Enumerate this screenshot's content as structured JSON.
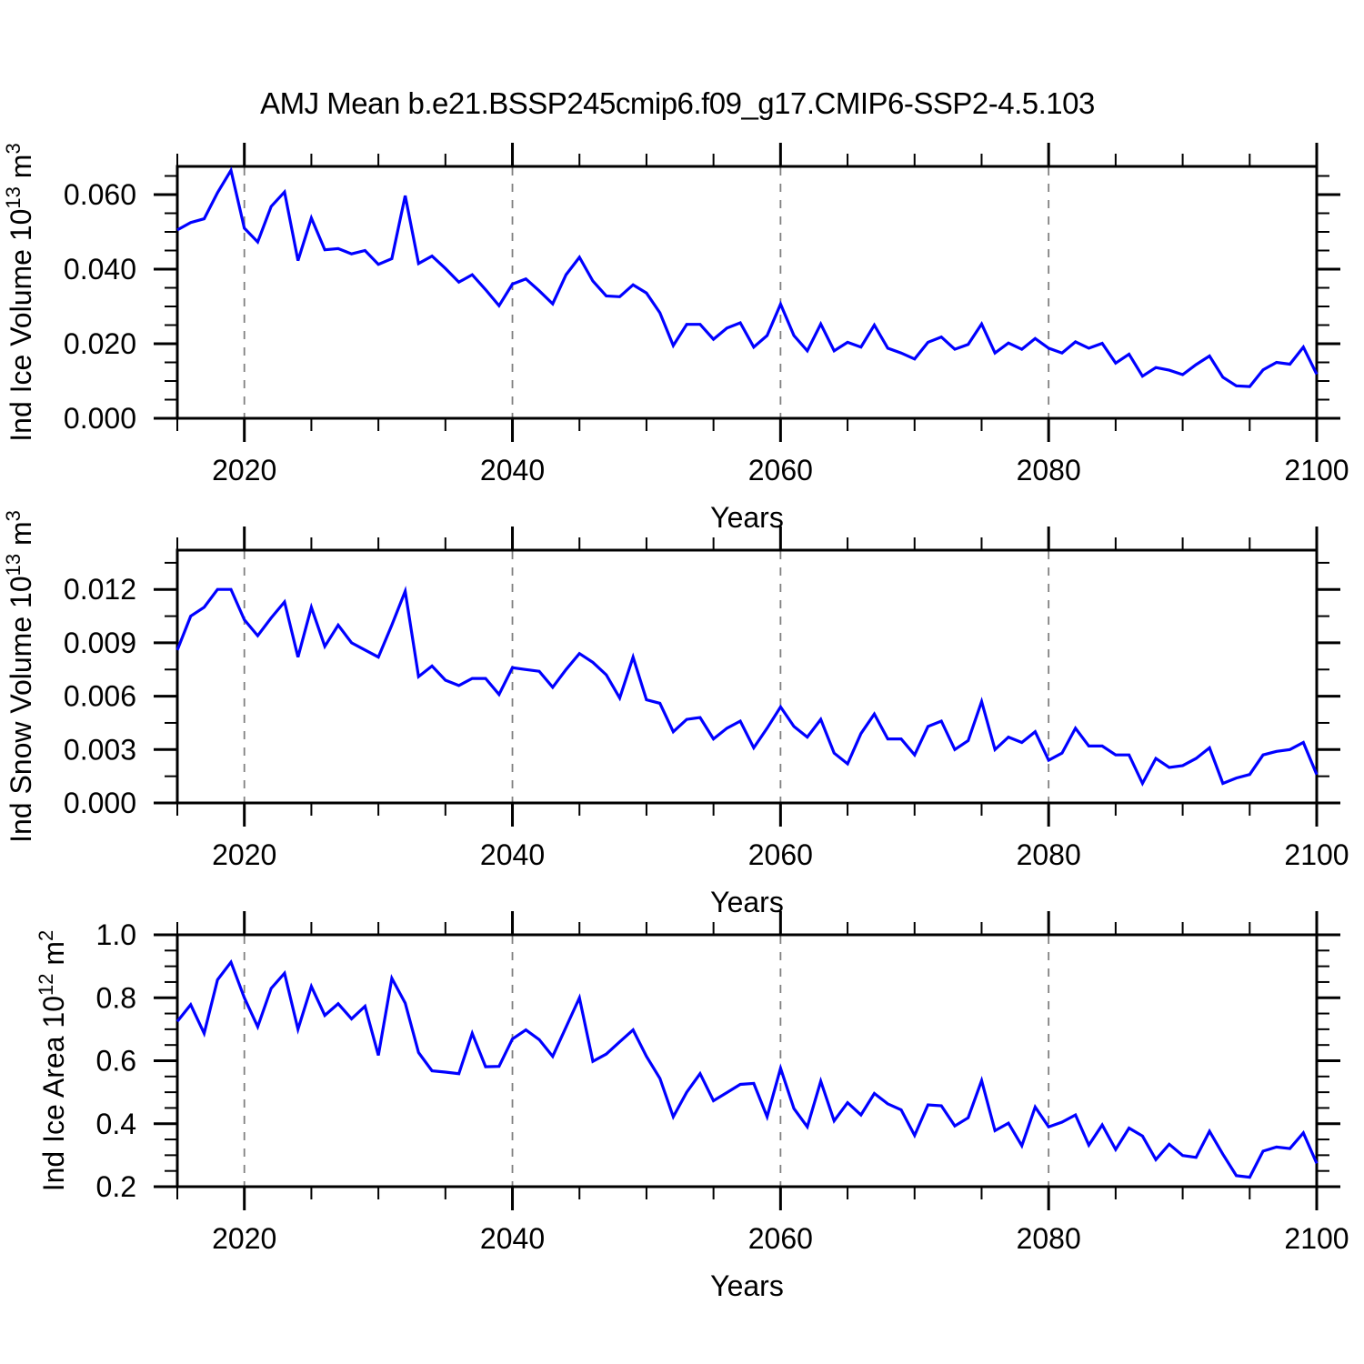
{
  "title": "AMJ Mean b.e21.BSSP245cmip6.f09_g17.CMIP6-SSP2-4.5.103",
  "colors": {
    "line": "#0000ff",
    "axis": "#000000",
    "grid": "#808080",
    "text": "#000000",
    "background": "#ffffff"
  },
  "x_axis": {
    "label": "Years",
    "range": [
      2015,
      2100
    ],
    "major_ticks": [
      2020,
      2040,
      2060,
      2080,
      2100
    ],
    "tick_labels": [
      "2020",
      "2040",
      "2060",
      "2080",
      "2100"
    ],
    "minor_step": 5,
    "grid_years": [
      2020,
      2040,
      2060,
      2080
    ]
  },
  "chart_data": [
    {
      "type": "line",
      "name": "ind-ice-volume",
      "ylabel_text": "Ind Ice Volume 10^13 m^3",
      "ylabel_parts": [
        {
          "text": "Ind Ice Volume 10"
        },
        {
          "text": "13",
          "sup": true
        },
        {
          "text": " m"
        },
        {
          "text": "3",
          "sup": true
        }
      ],
      "xlabel": "Years",
      "x_start": 2015,
      "ylim": [
        0,
        0.06756
      ],
      "yticks": [
        {
          "v": 0.0,
          "label": "0.000"
        },
        {
          "v": 0.02,
          "label": "0.020"
        },
        {
          "v": 0.04,
          "label": "0.040"
        },
        {
          "v": 0.06,
          "label": "0.060"
        }
      ],
      "yminor": [
        0.005,
        0.01,
        0.015,
        0.025,
        0.03,
        0.035,
        0.045,
        0.05,
        0.055,
        0.065
      ],
      "grid": "vertical-dashed",
      "legend": "none",
      "values": [
        0.0505,
        0.0525,
        0.0535,
        0.0605,
        0.0665,
        0.051,
        0.0473,
        0.0568,
        0.0607,
        0.0423,
        0.0537,
        0.0452,
        0.0455,
        0.0441,
        0.045,
        0.0413,
        0.0428,
        0.0597,
        0.0415,
        0.0435,
        0.0402,
        0.0365,
        0.0385,
        0.0345,
        0.0302,
        0.036,
        0.0374,
        0.0342,
        0.0307,
        0.0385,
        0.0432,
        0.0368,
        0.0328,
        0.0326,
        0.0358,
        0.0336,
        0.0283,
        0.0195,
        0.0252,
        0.0252,
        0.0212,
        0.0242,
        0.0256,
        0.0191,
        0.0222,
        0.0306,
        0.0222,
        0.0181,
        0.0253,
        0.0181,
        0.0204,
        0.0191,
        0.025,
        0.0188,
        0.0175,
        0.0159,
        0.0204,
        0.0218,
        0.0185,
        0.0198,
        0.0253,
        0.0175,
        0.0202,
        0.0185,
        0.0214,
        0.0188,
        0.0175,
        0.0205,
        0.0188,
        0.0201,
        0.0148,
        0.0172,
        0.0113,
        0.0136,
        0.0129,
        0.0117,
        0.0144,
        0.0167,
        0.011,
        0.0087,
        0.0085,
        0.013,
        0.015,
        0.0145,
        0.0191,
        0.0118
      ]
    },
    {
      "type": "line",
      "name": "ind-snow-volume",
      "ylabel_text": "Ind Snow Volume 10^13 m^3",
      "ylabel_parts": [
        {
          "text": "Ind Snow Volume 10"
        },
        {
          "text": "13",
          "sup": true
        },
        {
          "text": " m"
        },
        {
          "text": "3",
          "sup": true
        }
      ],
      "xlabel": "Years",
      "x_start": 2015,
      "ylim": [
        0,
        0.01421
      ],
      "yticks": [
        {
          "v": 0.0,
          "label": "0.000"
        },
        {
          "v": 0.003,
          "label": "0.003"
        },
        {
          "v": 0.006,
          "label": "0.006"
        },
        {
          "v": 0.009,
          "label": "0.009"
        },
        {
          "v": 0.012,
          "label": "0.012"
        }
      ],
      "yminor": [
        0.0015,
        0.0045,
        0.0075,
        0.0105,
        0.0135
      ],
      "grid": "vertical-dashed",
      "legend": "none",
      "values": [
        0.0086,
        0.0105,
        0.011,
        0.012,
        0.012,
        0.0103,
        0.0094,
        0.0104,
        0.0113,
        0.0082,
        0.011,
        0.0088,
        0.01,
        0.009,
        0.0086,
        0.0082,
        0.01,
        0.0119,
        0.0071,
        0.0077,
        0.0069,
        0.0066,
        0.007,
        0.007,
        0.0061,
        0.0076,
        0.0075,
        0.0074,
        0.0065,
        0.0075,
        0.0084,
        0.0079,
        0.0072,
        0.0059,
        0.0082,
        0.0058,
        0.0056,
        0.004,
        0.0047,
        0.0048,
        0.0036,
        0.0042,
        0.0046,
        0.0031,
        0.0042,
        0.0054,
        0.0043,
        0.0037,
        0.0047,
        0.0028,
        0.0022,
        0.0039,
        0.005,
        0.0036,
        0.0036,
        0.0027,
        0.0043,
        0.0046,
        0.003,
        0.0035,
        0.0057,
        0.003,
        0.0037,
        0.0034,
        0.004,
        0.0024,
        0.0028,
        0.0042,
        0.0032,
        0.0032,
        0.0027,
        0.0027,
        0.0011,
        0.0025,
        0.002,
        0.0021,
        0.0025,
        0.0031,
        0.0011,
        0.0014,
        0.0016,
        0.0027,
        0.0029,
        0.003,
        0.0034,
        0.0016
      ]
    },
    {
      "type": "line",
      "name": "ind-ice-area",
      "ylabel_text": "Ind Ice Area 10^12 m^2",
      "ylabel_parts": [
        {
          "text": "Ind Ice Area 10"
        },
        {
          "text": "12",
          "sup": true
        },
        {
          "text": " m"
        },
        {
          "text": "2",
          "sup": true
        }
      ],
      "xlabel": "Years",
      "x_start": 2015,
      "ylim": [
        0.2,
        1.0
      ],
      "yticks": [
        {
          "v": 0.2,
          "label": "0.2"
        },
        {
          "v": 0.4,
          "label": "0.4"
        },
        {
          "v": 0.6,
          "label": "0.6"
        },
        {
          "v": 0.8,
          "label": "0.8"
        },
        {
          "v": 1.0,
          "label": "1.0"
        }
      ],
      "yminor": [
        0.25,
        0.3,
        0.35,
        0.45,
        0.5,
        0.55,
        0.65,
        0.7,
        0.75,
        0.85,
        0.9,
        0.95
      ],
      "grid": "vertical-dashed",
      "legend": "none",
      "values": [
        0.725,
        0.778,
        0.687,
        0.857,
        0.913,
        0.8,
        0.708,
        0.83,
        0.878,
        0.7,
        0.836,
        0.744,
        0.781,
        0.733,
        0.773,
        0.617,
        0.862,
        0.783,
        0.626,
        0.568,
        0.564,
        0.559,
        0.687,
        0.581,
        0.582,
        0.669,
        0.698,
        0.667,
        0.614,
        0.707,
        0.8,
        0.598,
        0.621,
        0.66,
        0.698,
        0.614,
        0.544,
        0.422,
        0.5,
        0.559,
        0.473,
        0.499,
        0.525,
        0.528,
        0.422,
        0.576,
        0.448,
        0.39,
        0.535,
        0.409,
        0.467,
        0.428,
        0.496,
        0.463,
        0.444,
        0.363,
        0.46,
        0.457,
        0.393,
        0.419,
        0.537,
        0.378,
        0.402,
        0.33,
        0.453,
        0.39,
        0.405,
        0.428,
        0.332,
        0.396,
        0.318,
        0.386,
        0.361,
        0.286,
        0.335,
        0.299,
        0.293,
        0.376,
        0.303,
        0.235,
        0.23,
        0.313,
        0.326,
        0.321,
        0.371,
        0.274
      ]
    }
  ]
}
